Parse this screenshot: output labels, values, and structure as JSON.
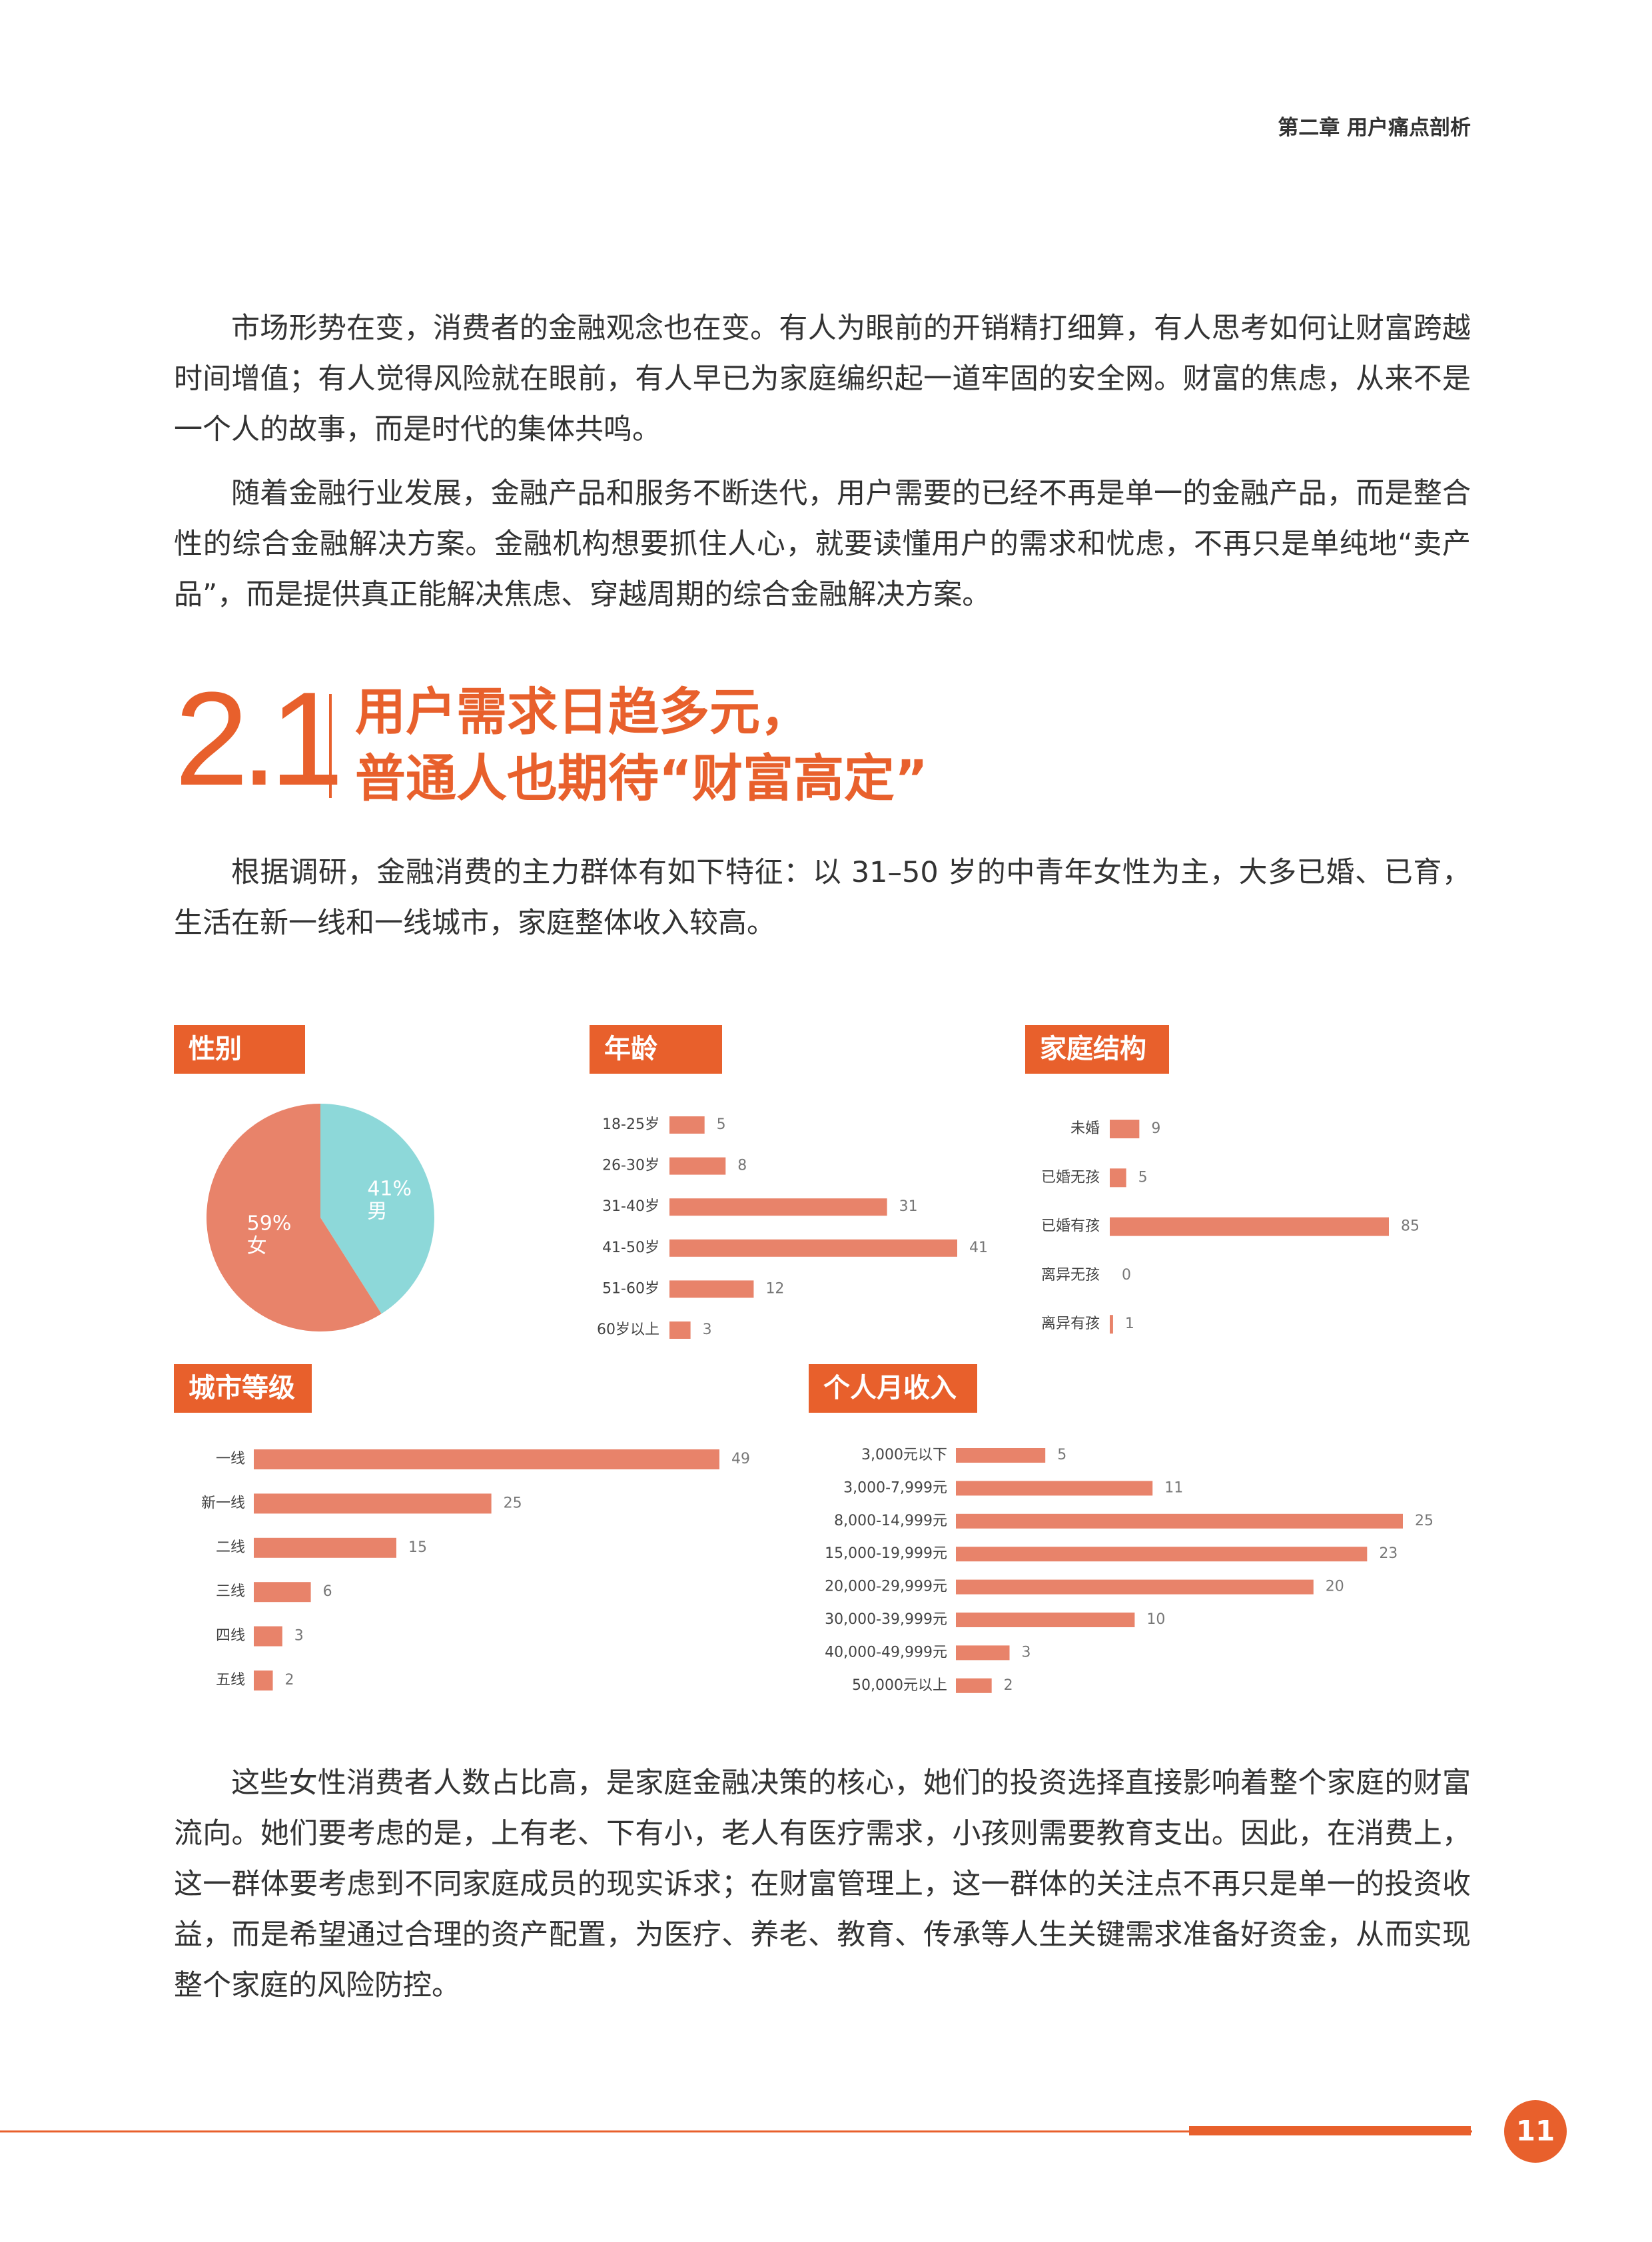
{
  "header": {
    "chapter": "第二章 用户痛点剖析"
  },
  "paragraphs": [
    "市场形势在变，消费者的金融观念也在变。有人为眼前的开销精打细算，有人思考如何让财富跨越时间增值；有人觉得风险就在眼前，有人早已为家庭编织起一道牢固的安全网。财富的焦虑，从来不是一个人的故事，而是时代的集体共鸣。",
    "随着金融行业发展，金融产品和服务不断迭代，用户需要的已经不再是单一的金融产品，而是整合性的综合金融解决方案。金融机构想要抓住人心，就要读懂用户的需求和忧虑，不再只是单纯地“卖产品”，而是提供真正能解决焦虑、穿越周期的综合金融解决方案。"
  ],
  "section": {
    "number": "2.1",
    "title_lines": [
      "用户需求日趋多元，",
      "普通人也期待“财富高定”"
    ]
  },
  "intro": "根据调研，金融消费的主力群体有如下特征：以 31–50 岁的中青年女性为主，大多已婚、已育，生活在新一线和一线城市，家庭整体收入较高。",
  "chart_data": [
    {
      "type": "pie",
      "title": "性别",
      "categories": [
        "男",
        "女"
      ],
      "values": [
        41,
        59
      ],
      "value_labels": [
        "41%",
        "59%"
      ],
      "colors": [
        "#8dd8d9",
        "#e8836a"
      ]
    },
    {
      "type": "bar",
      "title": "年龄",
      "categories": [
        "18-25岁",
        "26-30岁",
        "31-40岁",
        "41-50岁",
        "51-60岁",
        "60岁以上"
      ],
      "values": [
        5,
        8,
        31,
        41,
        12,
        3
      ],
      "color": "#e8836a"
    },
    {
      "type": "bar",
      "title": "家庭结构",
      "categories": [
        "未婚",
        "已婚无孩",
        "已婚有孩",
        "离异无孩",
        "离异有孩"
      ],
      "values": [
        9,
        5,
        85,
        0,
        1
      ],
      "color": "#e8836a"
    },
    {
      "type": "bar",
      "title": "城市等级",
      "categories": [
        "一线",
        "新一线",
        "二线",
        "三线",
        "四线",
        "五线"
      ],
      "values": [
        49,
        25,
        15,
        6,
        3,
        2
      ],
      "color": "#e8836a"
    },
    {
      "type": "bar",
      "title": "个人月收入",
      "categories": [
        "3,000元以下",
        "3,000-7,999元",
        "8,000-14,999元",
        "15,000-19,999元",
        "20,000-29,999元",
        "30,000-39,999元",
        "40,000-49,999元",
        "50,000元以上"
      ],
      "values": [
        5,
        11,
        25,
        23,
        20,
        10,
        3,
        2
      ],
      "color": "#e8836a"
    }
  ],
  "closing": "这些女性消费者人数占比高，是家庭金融决策的核心，她们的投资选择直接影响着整个家庭的财富流向。她们要考虑的是，上有老、下有小，老人有医疗需求，小孩则需要教育支出。因此，在消费上，这一群体要考虑到不同家庭成员的现实诉求；在财富管理上，这一群体的关注点不再只是单一的投资收益，而是希望通过合理的资产配置，为医疗、养老、教育、传承等人生关键需求准备好资金，从而实现整个家庭的风险防控。",
  "page_number": "11"
}
